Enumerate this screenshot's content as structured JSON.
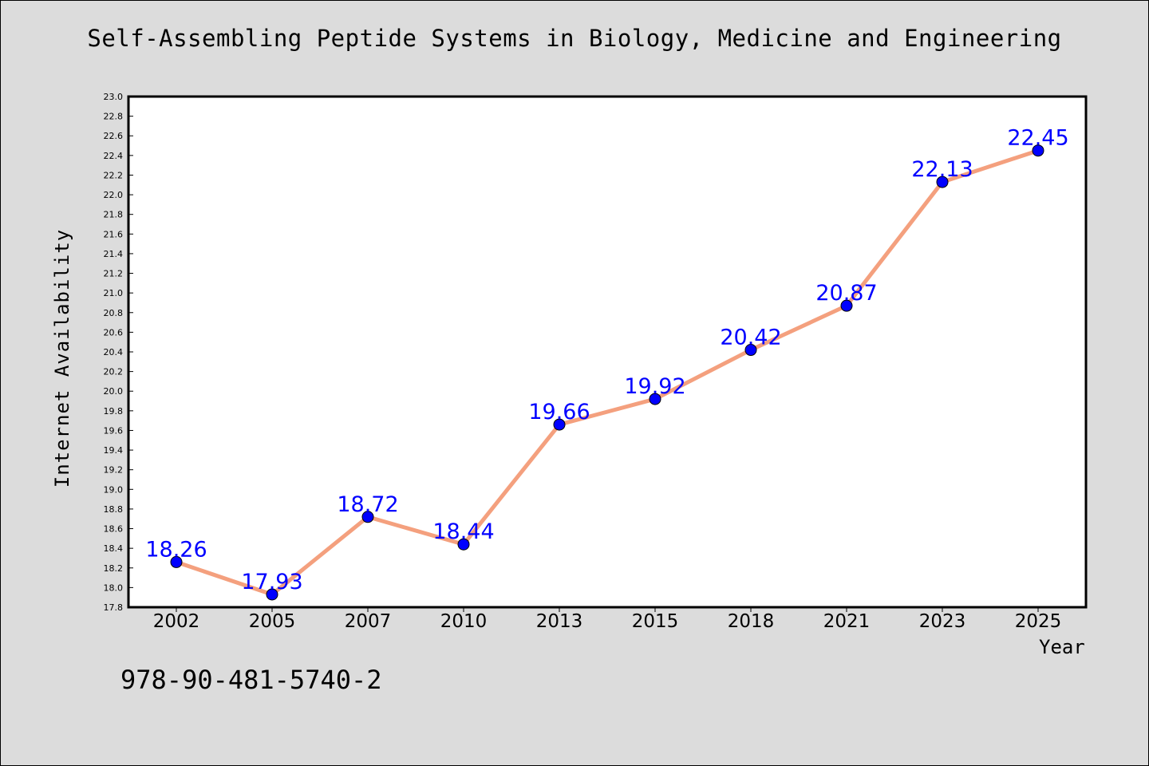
{
  "chart_data": {
    "type": "line",
    "title": "Self-Assembling Peptide Systems in Biology, Medicine and Engineering",
    "xlabel": "Year",
    "ylabel": "Internet Availability",
    "categories": [
      "2002",
      "2005",
      "2007",
      "2010",
      "2013",
      "2015",
      "2018",
      "2021",
      "2023",
      "2025"
    ],
    "series": [
      {
        "values": [
          18.26,
          17.93,
          18.72,
          18.44,
          19.66,
          19.92,
          20.42,
          20.87,
          22.13,
          22.45
        ],
        "labels": [
          "18.26",
          "17.93",
          "18.72",
          "18.44",
          "19.66",
          "19.92",
          "20.42",
          "20.87",
          "22.13",
          "22.45"
        ]
      }
    ],
    "ylim": [
      17.8,
      23.0
    ],
    "ytick_step": 0.2,
    "grid": false,
    "legend": "none",
    "colors": {
      "line": "#f4a07e",
      "marker": "#0000ff",
      "data_label": "#0000ff",
      "plot_bg": "#ffffff",
      "figure_bg": "#dcdcdc"
    }
  },
  "footer": {
    "isbn": "978-90-481-5740-2"
  }
}
